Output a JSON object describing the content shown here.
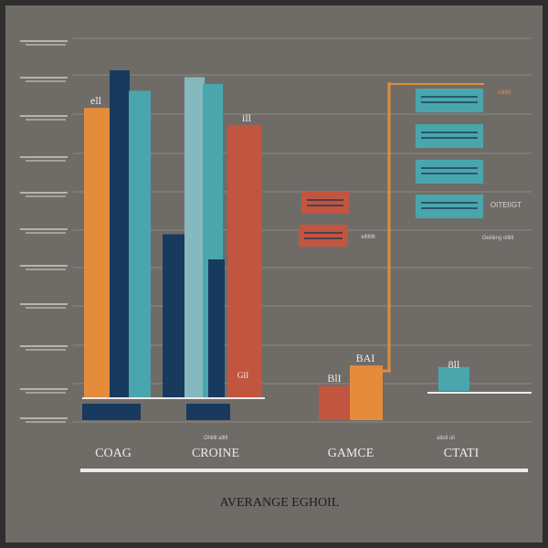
{
  "colors": {
    "frame": "#2e2e2e",
    "background": "#6f6c68",
    "grid": "#8d8a85",
    "orange": "#e58b3c",
    "navy": "#173a5e",
    "teal": "#4aa6ad",
    "light_teal": "#86b9bd",
    "red": "#c25540",
    "text_light": "#ececec",
    "text_dark": "#1d1d1d"
  },
  "chart_data": {
    "type": "bar",
    "title": "AVERANGE EGHOIL",
    "categories": [
      "COAG",
      "CROINE",
      "GAMCE",
      "CTATI"
    ],
    "grid": true,
    "ylim": [
      0,
      100
    ],
    "series": [
      {
        "color": "orange",
        "values": [
          85,
          null,
          16,
          null
        ]
      },
      {
        "color": "navy",
        "values": [
          96,
          48,
          null,
          null
        ]
      },
      {
        "color": "teal",
        "values": [
          90,
          92,
          null,
          7
        ]
      },
      {
        "color": "light_teal",
        "values": [
          null,
          94,
          null,
          null
        ]
      },
      {
        "color": "red",
        "values": [
          null,
          80,
          10,
          null
        ]
      }
    ],
    "data_labels": [
      "ell",
      "ill",
      "BlI",
      "BAI",
      "GII",
      "8ll"
    ],
    "category_sublabels": [
      "Ohlilll alllll",
      "alioll ull"
    ],
    "right_panel": {
      "labels": [
        "ollllllll",
        "OITEIIGT",
        "Oeiiiiing ollllll",
        "elllllllll"
      ]
    }
  }
}
